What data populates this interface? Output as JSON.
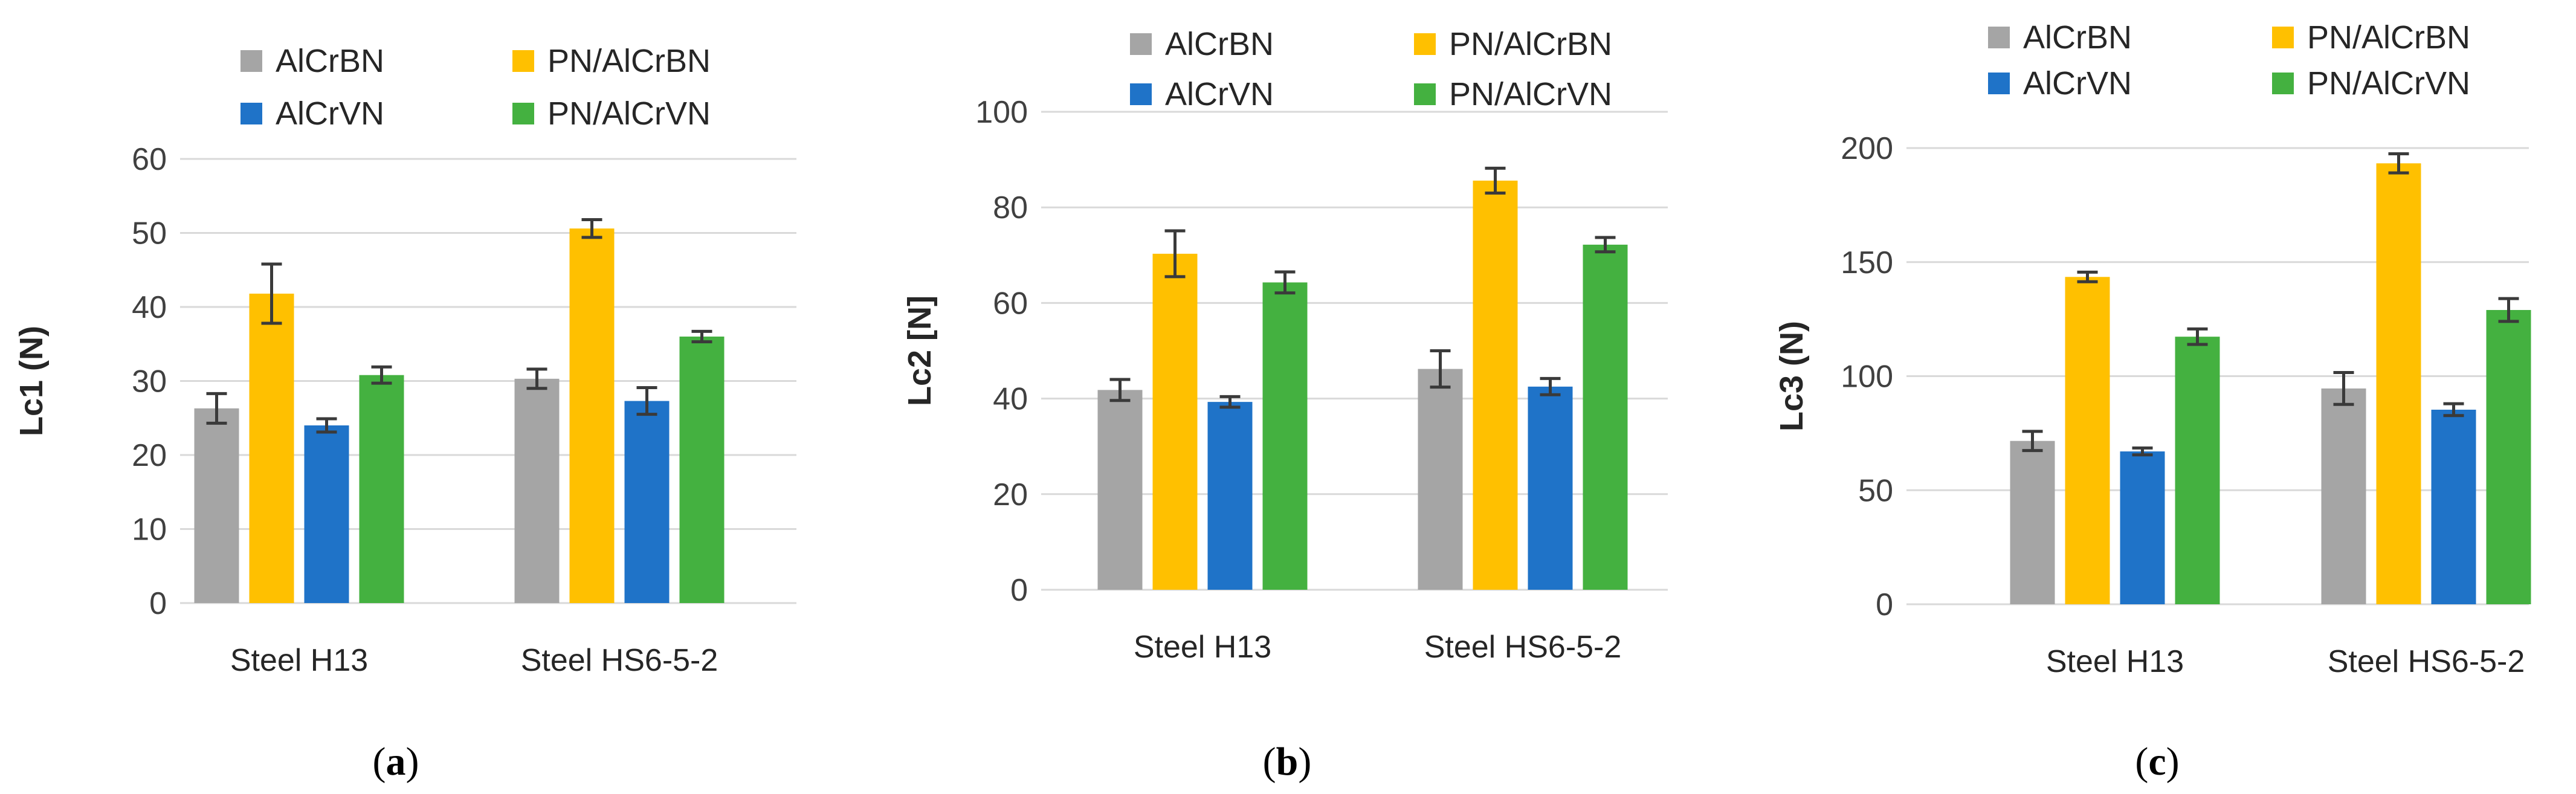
{
  "figure": {
    "panels": [
      "a",
      "b",
      "c"
    ]
  },
  "colors": {
    "AlCrBN": "#a5a5a5",
    "PN/AlCrBN": "#ffc000",
    "AlCrVN": "#1f73c8",
    "PN/AlCrVN": "#44b140"
  },
  "chart_data": [
    {
      "type": "bar",
      "panel": "a",
      "title": "",
      "xlabel": "",
      "ylabel": "Lc1 (N)",
      "ylim": [
        0,
        60
      ],
      "yticks": [
        0,
        10,
        20,
        30,
        40,
        50,
        60
      ],
      "grid": true,
      "legend_position": "top",
      "categories": [
        "Steel H13",
        "Steel HS6-5-2"
      ],
      "series": [
        {
          "name": "AlCrBN",
          "values": [
            26.3,
            30.3
          ],
          "errors": [
            2.0,
            1.3
          ]
        },
        {
          "name": "PN/AlCrBN",
          "values": [
            41.8,
            50.6
          ],
          "errors": [
            4.0,
            1.2
          ]
        },
        {
          "name": "AlCrVN",
          "values": [
            24.0,
            27.3
          ],
          "errors": [
            0.9,
            1.8
          ]
        },
        {
          "name": "PN/AlCrVN",
          "values": [
            30.8,
            36.0
          ],
          "errors": [
            1.1,
            0.7
          ]
        }
      ]
    },
    {
      "type": "bar",
      "panel": "b",
      "title": "",
      "xlabel": "",
      "ylabel": "Lc2 [N]",
      "ylim": [
        0,
        100
      ],
      "yticks": [
        0,
        20,
        40,
        60,
        80,
        100
      ],
      "grid": true,
      "legend_position": "top",
      "categories": [
        "Steel H13",
        "Steel HS6-5-2"
      ],
      "series": [
        {
          "name": "AlCrBN",
          "values": [
            41.8,
            46.2
          ],
          "errors": [
            2.2,
            3.8
          ]
        },
        {
          "name": "PN/AlCrBN",
          "values": [
            70.3,
            85.6
          ],
          "errors": [
            4.8,
            2.6
          ]
        },
        {
          "name": "AlCrVN",
          "values": [
            39.3,
            42.5
          ],
          "errors": [
            1.1,
            1.7
          ]
        },
        {
          "name": "PN/AlCrVN",
          "values": [
            64.3,
            72.2
          ],
          "errors": [
            2.2,
            1.5
          ]
        }
      ]
    },
    {
      "type": "bar",
      "panel": "c",
      "title": "",
      "xlabel": "",
      "ylabel": "Lc3 (N)",
      "ylim": [
        0,
        200
      ],
      "yticks": [
        0,
        50,
        100,
        150,
        200
      ],
      "grid": true,
      "legend_position": "top",
      "categories": [
        "Steel H13",
        "Steel HS6-5-2"
      ],
      "series": [
        {
          "name": "AlCrBN",
          "values": [
            71.6,
            94.6
          ],
          "errors": [
            4.2,
            7.0
          ]
        },
        {
          "name": "PN/AlCrBN",
          "values": [
            143.5,
            193.3
          ],
          "errors": [
            2.1,
            4.2
          ]
        },
        {
          "name": "AlCrVN",
          "values": [
            67.0,
            85.3
          ],
          "errors": [
            1.5,
            2.6
          ]
        },
        {
          "name": "PN/AlCrVN",
          "values": [
            117.3,
            129.0
          ],
          "errors": [
            3.4,
            5.0
          ]
        }
      ]
    }
  ]
}
